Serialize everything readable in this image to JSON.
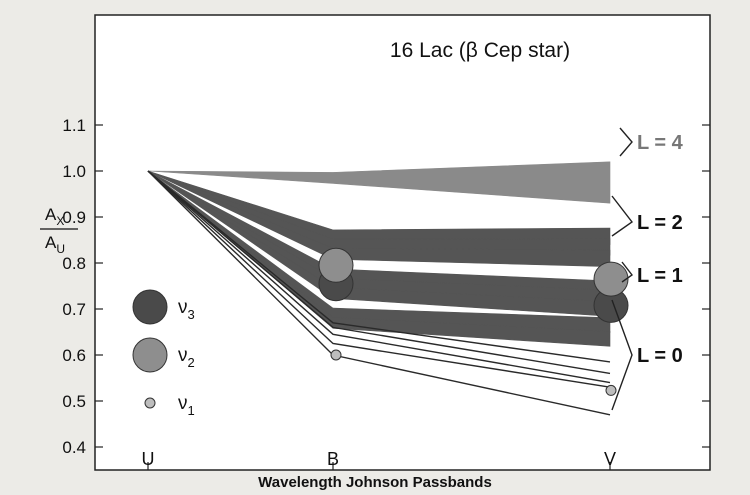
{
  "chart_data": {
    "type": "line",
    "title": "16 Lac (β Cep star)",
    "xlabel": "Wavelength Johnson Passbands",
    "ylabel_num": "A",
    "ylabel_num_sub": "X",
    "ylabel_den": "A",
    "ylabel_den_sub": "U",
    "categories": [
      "U",
      "B",
      "V"
    ],
    "ylim": [
      0.4,
      1.1
    ],
    "yticks": [
      "0.4",
      "0.5",
      "0.6",
      "0.7",
      "0.8",
      "0.9",
      "1.0",
      "1.1"
    ],
    "colors": {
      "band": "#555555",
      "band_light": "#8a8a8a",
      "line": "#2a2a2a",
      "dark_circle": "#4a4a4a",
      "mid_circle": "#8e8e8e",
      "light_circle": "#bdbdbd"
    },
    "bands": [
      {
        "group": "L = 4",
        "values": [
          1.0,
          0.985,
          0.975
        ],
        "width": [
          0,
          0.012,
          0.045
        ]
      },
      {
        "group": "L = 2",
        "values": [
          1.0,
          0.86,
          0.858
        ],
        "width": [
          0,
          0.012,
          0.018
        ]
      },
      {
        "group": "L = 2",
        "values": [
          1.0,
          0.84,
          0.835
        ],
        "width": [
          0,
          0.012,
          0.018
        ]
      },
      {
        "group": "L = 2",
        "values": [
          1.0,
          0.82,
          0.81
        ],
        "width": [
          0,
          0.012,
          0.018
        ]
      },
      {
        "group": "L = 1",
        "values": [
          1.0,
          0.775,
          0.745
        ],
        "width": [
          0,
          0.012,
          0.016
        ]
      },
      {
        "group": "L = 1",
        "values": [
          1.0,
          0.755,
          0.725
        ],
        "width": [
          0,
          0.012,
          0.016
        ]
      },
      {
        "group": "L = 1",
        "values": [
          1.0,
          0.735,
          0.7
        ],
        "width": [
          0,
          0.012,
          0.016
        ]
      },
      {
        "group": "L = 0",
        "values": [
          1.0,
          0.69,
          0.665
        ],
        "width": [
          0,
          0.012,
          0.016
        ]
      },
      {
        "group": "L = 0",
        "values": [
          1.0,
          0.67,
          0.635
        ],
        "width": [
          0,
          0.012,
          0.016
        ]
      }
    ],
    "lines": [
      {
        "group": "L = 0",
        "values": [
          1.0,
          0.67,
          0.585
        ]
      },
      {
        "group": "L = 0",
        "values": [
          1.0,
          0.66,
          0.56
        ]
      },
      {
        "group": "L = 0",
        "values": [
          1.0,
          0.645,
          0.54
        ]
      },
      {
        "group": "L = 0",
        "values": [
          1.0,
          0.625,
          0.53
        ]
      },
      {
        "group": "L = 0",
        "values": [
          1.0,
          0.6,
          0.47
        ]
      }
    ],
    "observed": [
      {
        "name": "ν3",
        "values": [
          1.0,
          0.755,
          0.708
        ]
      },
      {
        "name": "ν2",
        "values": [
          1.0,
          0.795,
          0.765
        ]
      },
      {
        "name": "ν1",
        "values": [
          1.0,
          0.6,
          0.523
        ]
      }
    ],
    "groups": [
      "L = 4",
      "L = 2",
      "L = 1",
      "L = 0"
    ],
    "legend": [
      {
        "name": "ν3",
        "sub": "3",
        "sym": "ν",
        "size": "large",
        "tone": "dark"
      },
      {
        "name": "ν2",
        "sub": "2",
        "sym": "ν",
        "size": "large",
        "tone": "mid"
      },
      {
        "name": "ν1",
        "sub": "1",
        "sym": "ν",
        "size": "small",
        "tone": "light"
      }
    ]
  }
}
